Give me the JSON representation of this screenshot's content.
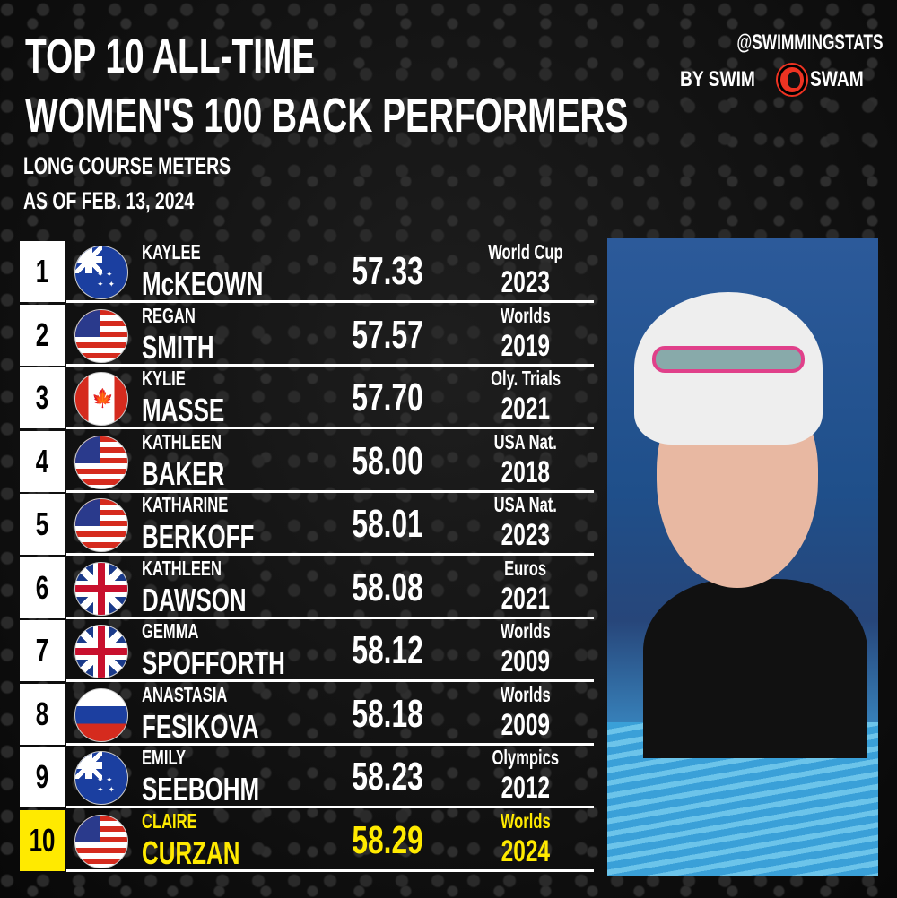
{
  "title_line1": "TOP 10 ALL-TIME",
  "title_line2": "WOMEN'S 100 BACK PERFORMERS",
  "subtitle1": "LONG COURSE METERS",
  "subtitle2": "AS OF FEB. 13, 2024",
  "brand": {
    "handle": "@SWIMMINGSTATS",
    "by": "BY SWIM",
    "swam": "SWAM"
  },
  "highlight_color": "#ffea00",
  "rows": [
    {
      "rank": "1",
      "flag": "australia",
      "first": "KAYLEE",
      "last": "McKEOWN",
      "time": "57.33",
      "meet": "World Cup",
      "year": "2023"
    },
    {
      "rank": "2",
      "flag": "usa",
      "first": "REGAN",
      "last": "SMITH",
      "time": "57.57",
      "meet": "Worlds",
      "year": "2019"
    },
    {
      "rank": "3",
      "flag": "canada",
      "first": "KYLIE",
      "last": "MASSE",
      "time": "57.70",
      "meet": "Oly. Trials",
      "year": "2021"
    },
    {
      "rank": "4",
      "flag": "usa",
      "first": "KATHLEEN",
      "last": "BAKER",
      "time": "58.00",
      "meet": "USA Nat.",
      "year": "2018"
    },
    {
      "rank": "5",
      "flag": "usa",
      "first": "KATHARINE",
      "last": "BERKOFF",
      "time": "58.01",
      "meet": "USA Nat.",
      "year": "2023"
    },
    {
      "rank": "6",
      "flag": "great-britain",
      "first": "KATHLEEN",
      "last": "DAWSON",
      "time": "58.08",
      "meet": "Euros",
      "year": "2021"
    },
    {
      "rank": "7",
      "flag": "great-britain",
      "first": "GEMMA",
      "last": "SPOFFORTH",
      "time": "58.12",
      "meet": "Worlds",
      "year": "2009"
    },
    {
      "rank": "8",
      "flag": "russia",
      "first": "ANASTASIA",
      "last": "FESIKOVA",
      "time": "58.18",
      "meet": "Worlds",
      "year": "2009"
    },
    {
      "rank": "9",
      "flag": "australia",
      "first": "EMILY",
      "last": "SEEBOHM",
      "time": "58.23",
      "meet": "Olympics",
      "year": "2012"
    },
    {
      "rank": "10",
      "flag": "usa",
      "first": "CLAIRE",
      "last": "CURZAN",
      "time": "58.29",
      "meet": "Worlds",
      "year": "2024",
      "highlighted": true
    }
  ]
}
